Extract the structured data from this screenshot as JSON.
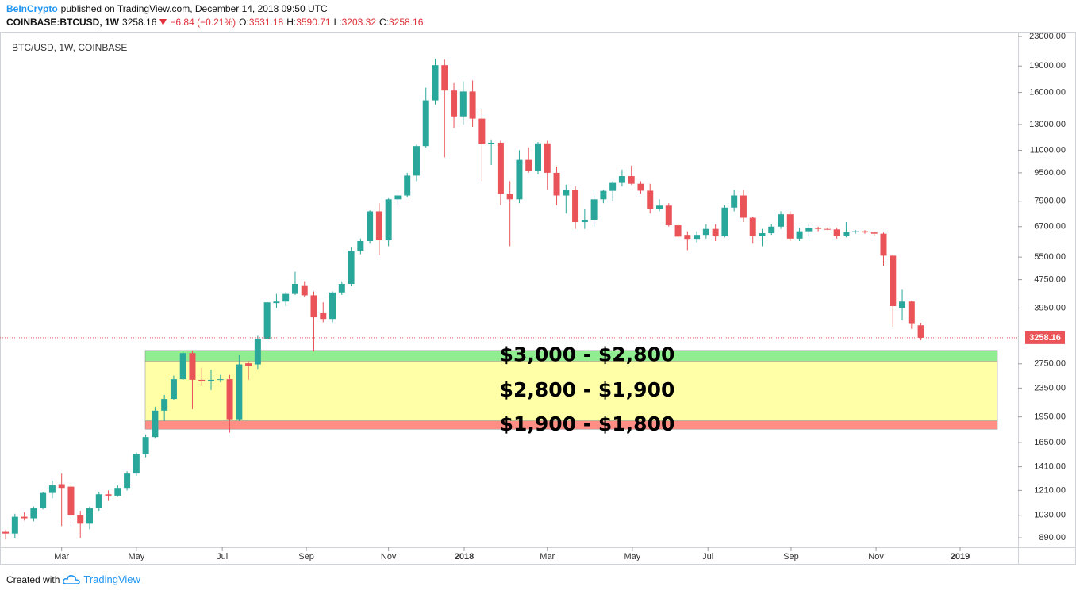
{
  "header": {
    "publisher": "BeInCrypto",
    "published": "published on TradingView.com, December 14, 2018 09:50 UTC",
    "symbol": "COINBASE:BTCUSD, 1W",
    "change": "−6.84 (−0.21%)",
    "open_label": "O:",
    "high_label": "H:",
    "low_label": "L:",
    "close_label": "C:"
  },
  "footer": {
    "created": "Created with",
    "brand": "TradingView"
  },
  "chart_data": {
    "type": "candlestick",
    "title": "BTC/USD, 1W, COINBASE",
    "log_scale": true,
    "up_color": "#2aa79b",
    "down_color": "#ea5459",
    "open": [
      925,
      915,
      1020,
      1010,
      1080,
      1190,
      1260,
      1240,
      1030,
      975,
      1080,
      1180,
      1170,
      1230,
      1350,
      1530,
      1710,
      2030,
      2190,
      2490,
      2950,
      2480,
      2460,
      2480,
      2490,
      1920,
      2760,
      2740,
      3240,
      4080,
      4120,
      4330,
      4580,
      4290,
      3820,
      3680,
      4370,
      4620,
      5730,
      6100,
      7400,
      6130,
      8000,
      8200,
      9330,
      11300,
      15200,
      19100,
      16200,
      13700,
      16100,
      13500,
      11450,
      11550,
      8300,
      8000,
      10330,
      9600,
      11500,
      9500,
      8200,
      8500,
      6900,
      7000,
      8000,
      8450,
      8900,
      9300,
      8850,
      8460,
      7500,
      7680,
      6760,
      6350,
      6190,
      6350,
      6600,
      6290,
      7580,
      8200,
      7100,
      6300,
      6420,
      6700,
      7260,
      6200,
      6500,
      6650,
      6600,
      6580,
      6300,
      6470,
      6500,
      6450,
      6400,
      5550,
      3950,
      4120,
      3531.18
    ],
    "high": [
      935,
      1040,
      1050,
      1090,
      1200,
      1290,
      1350,
      1255,
      1060,
      1090,
      1200,
      1210,
      1250,
      1370,
      1550,
      1740,
      2080,
      2250,
      2550,
      3000,
      3000,
      2680,
      2650,
      2560,
      2560,
      2910,
      2800,
      3300,
      4110,
      4330,
      4380,
      5000,
      4700,
      4400,
      4100,
      4400,
      4700,
      5850,
      6200,
      7450,
      7800,
      8050,
      8300,
      9500,
      11400,
      16500,
      19900,
      19800,
      17000,
      17200,
      17300,
      14400,
      11800,
      11700,
      9000,
      11000,
      11200,
      11600,
      11700,
      9900,
      8800,
      8700,
      7500,
      8200,
      8500,
      9000,
      9700,
      9950,
      9000,
      8850,
      8000,
      7800,
      6850,
      6500,
      6500,
      6800,
      6800,
      7700,
      8500,
      8500,
      7150,
      6600,
      6800,
      7400,
      7400,
      6650,
      6800,
      6700,
      6650,
      6650,
      6900,
      6550,
      6550,
      6500,
      6450,
      5600,
      4450,
      4140,
      3590.71
    ],
    "low": [
      880,
      890,
      995,
      990,
      1070,
      1150,
      960,
      960,
      890,
      940,
      1060,
      1130,
      1160,
      1210,
      1330,
      1500,
      1700,
      1900,
      2180,
      2480,
      2050,
      2380,
      2320,
      2440,
      1760,
      1900,
      2480,
      2660,
      3230,
      3950,
      4000,
      4300,
      4250,
      2980,
      3600,
      3600,
      4300,
      4550,
      5600,
      6000,
      5560,
      5900,
      7700,
      8100,
      9000,
      11200,
      14800,
      10500,
      12700,
      13000,
      12800,
      9000,
      10000,
      7700,
      5900,
      7800,
      9500,
      9400,
      8500,
      7700,
      7300,
      6600,
      6600,
      6700,
      7800,
      7900,
      8700,
      8800,
      8300,
      7300,
      7400,
      6700,
      6200,
      5750,
      6050,
      6200,
      6100,
      6250,
      7400,
      6900,
      6000,
      5900,
      6350,
      6600,
      6100,
      6100,
      6300,
      6500,
      6550,
      6200,
      6250,
      6400,
      6400,
      6300,
      5200,
      3500,
      3650,
      3450,
      3203.32
    ],
    "close": [
      915,
      1020,
      1010,
      1080,
      1190,
      1250,
      1230,
      1030,
      975,
      1080,
      1180,
      1170,
      1230,
      1350,
      1530,
      1710,
      2030,
      2190,
      2490,
      2950,
      2480,
      2460,
      2480,
      2490,
      1920,
      2740,
      2710,
      3240,
      4100,
      4120,
      4330,
      4620,
      4290,
      3720,
      3680,
      4370,
      4620,
      5730,
      6100,
      7400,
      6130,
      8000,
      8200,
      9330,
      11300,
      15200,
      19100,
      16200,
      13700,
      16100,
      13500,
      11450,
      11550,
      8300,
      8000,
      10330,
      9600,
      11500,
      9500,
      8200,
      8500,
      6900,
      7000,
      8000,
      8450,
      8900,
      9300,
      8850,
      8460,
      7500,
      7680,
      6760,
      6280,
      6190,
      6350,
      6600,
      6290,
      7580,
      8200,
      7100,
      6300,
      6420,
      6700,
      7260,
      6200,
      6500,
      6650,
      6600,
      6580,
      6300,
      6470,
      6500,
      6450,
      6400,
      5550,
      4000,
      4120,
      3580,
      3258.16
    ],
    "xlim": [
      -0.6,
      108.4
    ],
    "xticks": [
      {
        "value": 6.0,
        "label": "Mar"
      },
      {
        "value": 14.0,
        "label": "May"
      },
      {
        "value": 23.2,
        "label": "Jul"
      },
      {
        "value": 32.2,
        "label": "Sep"
      },
      {
        "value": 41.0,
        "label": "Nov"
      },
      {
        "value": 49.1,
        "label": "2018"
      },
      {
        "value": 58.0,
        "label": "Mar"
      },
      {
        "value": 67.1,
        "label": "May"
      },
      {
        "value": 75.2,
        "label": "Jul"
      },
      {
        "value": 84.1,
        "label": "Sep"
      },
      {
        "value": 93.2,
        "label": "Nov"
      },
      {
        "value": 102.2,
        "label": "2019"
      }
    ],
    "ylim": [
      837,
      23730
    ],
    "yticks": [
      {
        "value": 890,
        "label": "890.00"
      },
      {
        "value": 1030,
        "label": "1030.00"
      },
      {
        "value": 1210,
        "label": "1210.00"
      },
      {
        "value": 1410,
        "label": "1410.00"
      },
      {
        "value": 1650,
        "label": "1650.00"
      },
      {
        "value": 1950,
        "label": "1950.00"
      },
      {
        "value": 2350,
        "label": "2350.00"
      },
      {
        "value": 2750,
        "label": "2750.00"
      },
      {
        "value": 3950,
        "label": "3950.00"
      },
      {
        "value": 4750,
        "label": "4750.00"
      },
      {
        "value": 5500,
        "label": "5500.00"
      },
      {
        "value": 6700,
        "label": "6700.00"
      },
      {
        "value": 7900,
        "label": "7900.00"
      },
      {
        "value": 9500,
        "label": "9500.00"
      },
      {
        "value": 11000,
        "label": "11000.00"
      },
      {
        "value": 13000,
        "label": "13000.00"
      },
      {
        "value": 16000,
        "label": "16000.00"
      },
      {
        "value": 19000,
        "label": "19000.00"
      },
      {
        "value": 23000,
        "label": "23000.00"
      }
    ],
    "zones": [
      {
        "label": "$3,000 - $2,800",
        "high": 3000,
        "low": 2800,
        "color": "#90ee90"
      },
      {
        "label": "$2,800 - $1,900",
        "high": 2800,
        "low": 1900,
        "color": "#ffffa8"
      },
      {
        "label": "$1,900 - $1,800",
        "high": 1900,
        "low": 1800,
        "color": "#ff8f85"
      }
    ]
  }
}
